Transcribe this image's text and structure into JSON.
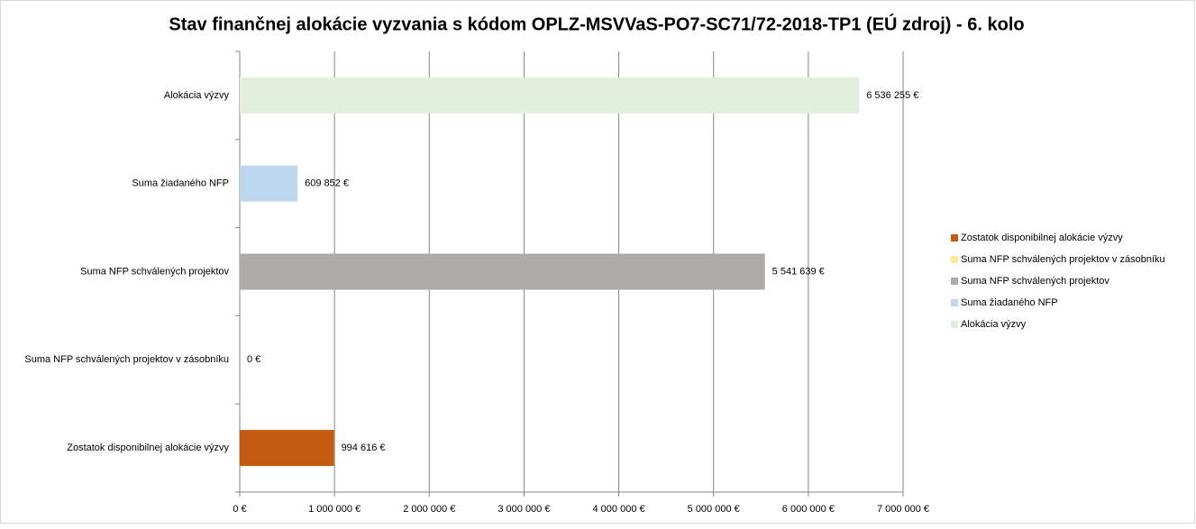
{
  "chart_data": {
    "type": "bar",
    "orientation": "horizontal",
    "title": "Stav finančnej alokácie vyzvania s kódom OPLZ-MSVVaS-PO7-SC71/72-2018-TP1 (EÚ zdroj) - 6. kolo",
    "categories": [
      "Alokácia výzvy",
      "Suma žiadaného NFP",
      "Suma NFP schválených projektov",
      "Suma NFP schválených projektov v zásobníku",
      "Zostatok disponibilnej alokácie výzvy"
    ],
    "series": [
      {
        "name": "Zostatok disponibilnej alokácie výzvy",
        "color": "#c55a11",
        "values": [
          null,
          null,
          null,
          null,
          994616
        ],
        "value_labels": [
          null,
          null,
          null,
          null,
          "994 616 €"
        ]
      },
      {
        "name": "Suma NFP schválených projektov v zásobníku",
        "color": "#ffe699",
        "values": [
          null,
          null,
          null,
          0,
          null
        ],
        "value_labels": [
          null,
          null,
          null,
          "0 €",
          null
        ]
      },
      {
        "name": "Suma NFP schválených projektov",
        "color": "#aeaaaa",
        "values": [
          null,
          null,
          5541639,
          null,
          null
        ],
        "value_labels": [
          null,
          null,
          "5 541 639 €",
          null,
          null
        ]
      },
      {
        "name": "Suma žiadaného NFP",
        "color": "#bdd7ee",
        "values": [
          null,
          609852,
          null,
          null,
          null
        ],
        "value_labels": [
          null,
          "609 852 €",
          null,
          null,
          null
        ]
      },
      {
        "name": "Alokácia výzvy",
        "color": "#e2efda",
        "values": [
          6536255,
          null,
          null,
          null,
          null
        ],
        "value_labels": [
          "6 536 255 €",
          null,
          null,
          null,
          null
        ]
      }
    ],
    "xlim": [
      0,
      7000000
    ],
    "xticks": [
      {
        "value": 0,
        "label": "0 €"
      },
      {
        "value": 1000000,
        "label": "1 000 000 €"
      },
      {
        "value": 2000000,
        "label": "2 000 000 €"
      },
      {
        "value": 3000000,
        "label": "3 000 000 €"
      },
      {
        "value": 4000000,
        "label": "4 000 000 €"
      },
      {
        "value": 5000000,
        "label": "5 000 000 €"
      },
      {
        "value": 6000000,
        "label": "6 000 000 €"
      },
      {
        "value": 7000000,
        "label": "7 000 000 €"
      }
    ],
    "grid": true,
    "legend": "right"
  }
}
